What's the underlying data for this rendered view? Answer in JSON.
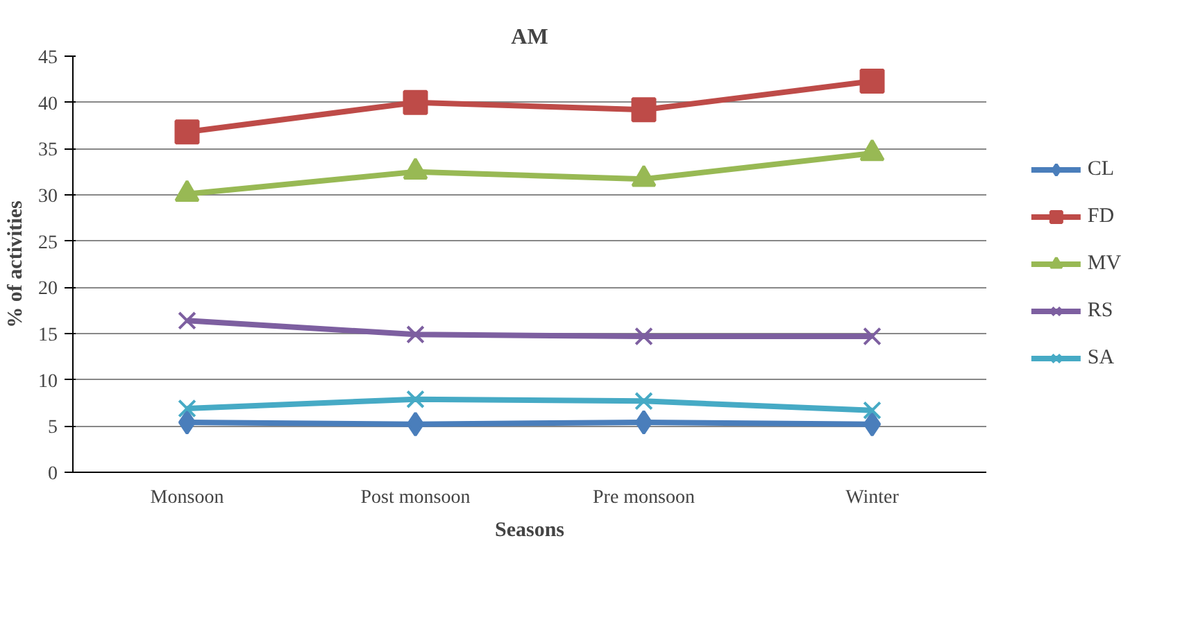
{
  "chart_data": {
    "type": "line",
    "title": "AM",
    "xlabel": "Seasons",
    "ylabel": "% of activities",
    "categories": [
      "Monsoon",
      "Post monsoon",
      "Pre monsoon",
      "Winter"
    ],
    "ylim": [
      0,
      45
    ],
    "yticks": [
      0,
      5,
      10,
      15,
      20,
      25,
      30,
      35,
      40,
      45
    ],
    "grid": "y",
    "legend": "right",
    "line_style": "solid",
    "series": [
      {
        "name": "CL",
        "color": "#4a7ebb",
        "marker": "diamond",
        "values": [
          5.4,
          5.2,
          5.4,
          5.2
        ]
      },
      {
        "name": "FD",
        "color": "#be4b48",
        "marker": "square",
        "values": [
          36.8,
          40.0,
          39.2,
          42.3
        ]
      },
      {
        "name": "MV",
        "color": "#98b954",
        "marker": "triangle",
        "values": [
          30.1,
          32.5,
          31.7,
          34.5
        ]
      },
      {
        "name": "RS",
        "color": "#7d5fa0",
        "marker": "cross",
        "values": [
          16.4,
          14.9,
          14.7,
          14.7
        ]
      },
      {
        "name": "SA",
        "color": "#46aac5",
        "marker": "cross",
        "values": [
          6.9,
          7.9,
          7.7,
          6.7
        ]
      }
    ]
  }
}
